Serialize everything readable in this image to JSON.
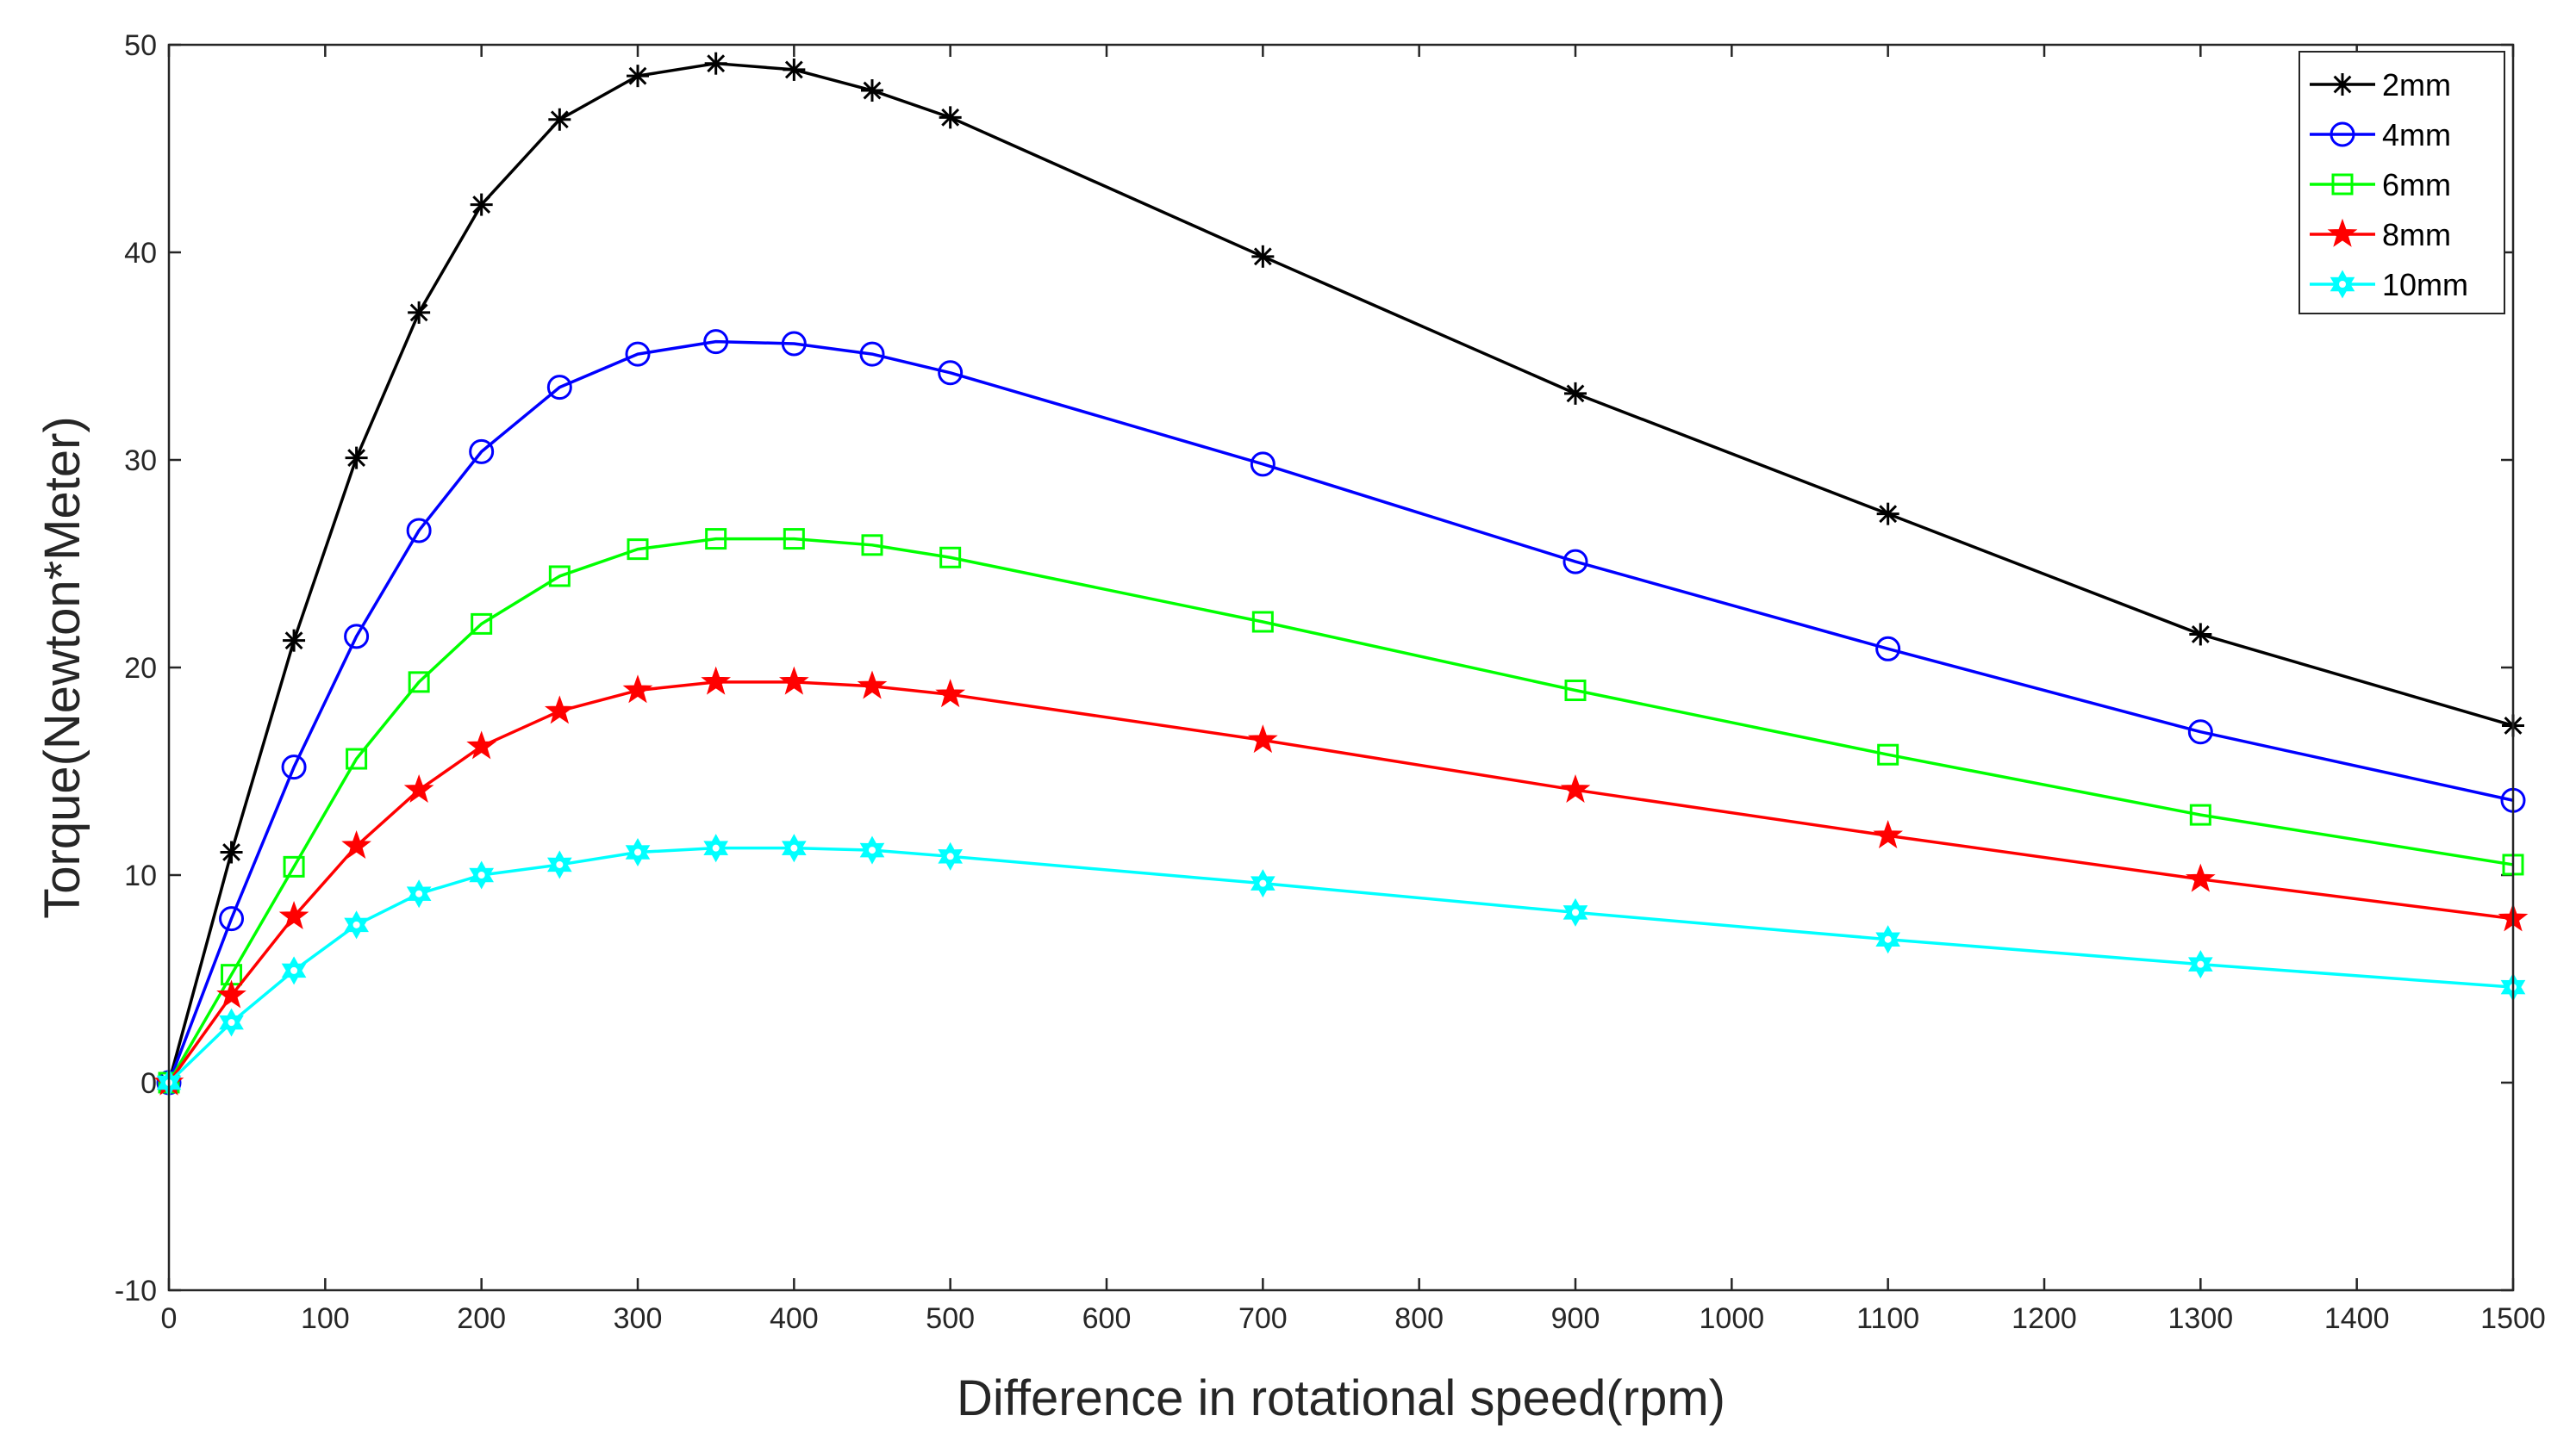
{
  "chart_data": {
    "type": "line",
    "title": "",
    "xlabel": "Difference in rotational speed(rpm)",
    "ylabel": "Torque(Newton*Meter)",
    "xlim": [
      0,
      1500
    ],
    "ylim": [
      -10,
      50
    ],
    "xticks": [
      0,
      100,
      200,
      300,
      400,
      500,
      600,
      700,
      800,
      900,
      1000,
      1100,
      1200,
      1300,
      1400,
      1500
    ],
    "yticks": [
      -10,
      0,
      10,
      20,
      30,
      40,
      50
    ],
    "grid": false,
    "legend_position": "top-right",
    "x": [
      0,
      40,
      80,
      120,
      160,
      200,
      250,
      300,
      350,
      400,
      450,
      500,
      700,
      900,
      1100,
      1300,
      1500
    ],
    "series": [
      {
        "name": "2mm",
        "color": "#000000",
        "marker": "asterisk",
        "values": [
          0,
          11.1,
          21.3,
          30.1,
          37.1,
          42.3,
          46.4,
          48.5,
          49.1,
          48.8,
          47.8,
          46.5,
          39.8,
          33.2,
          27.4,
          21.6,
          17.2
        ]
      },
      {
        "name": "4mm",
        "color": "#0000ff",
        "marker": "circle",
        "values": [
          0,
          7.9,
          15.2,
          21.5,
          26.6,
          30.4,
          33.5,
          35.1,
          35.7,
          35.6,
          35.1,
          34.2,
          29.8,
          25.1,
          20.9,
          16.9,
          13.6
        ]
      },
      {
        "name": "6mm",
        "color": "#00ff00",
        "marker": "square",
        "values": [
          0,
          5.2,
          10.4,
          15.6,
          19.3,
          22.1,
          24.4,
          25.7,
          26.2,
          26.2,
          25.9,
          25.3,
          22.2,
          18.9,
          15.8,
          12.9,
          10.5
        ]
      },
      {
        "name": "8mm",
        "color": "#ff0000",
        "marker": "star",
        "values": [
          0,
          4.2,
          8.0,
          11.4,
          14.1,
          16.2,
          17.9,
          18.9,
          19.3,
          19.3,
          19.1,
          18.7,
          16.5,
          14.1,
          11.9,
          9.8,
          7.9
        ]
      },
      {
        "name": "10mm",
        "color": "#00ffff",
        "marker": "hexagram",
        "values": [
          0,
          2.9,
          5.4,
          7.6,
          9.1,
          10.0,
          10.5,
          11.1,
          11.3,
          11.3,
          11.2,
          10.9,
          9.6,
          8.2,
          6.9,
          5.7,
          4.6
        ]
      }
    ]
  }
}
